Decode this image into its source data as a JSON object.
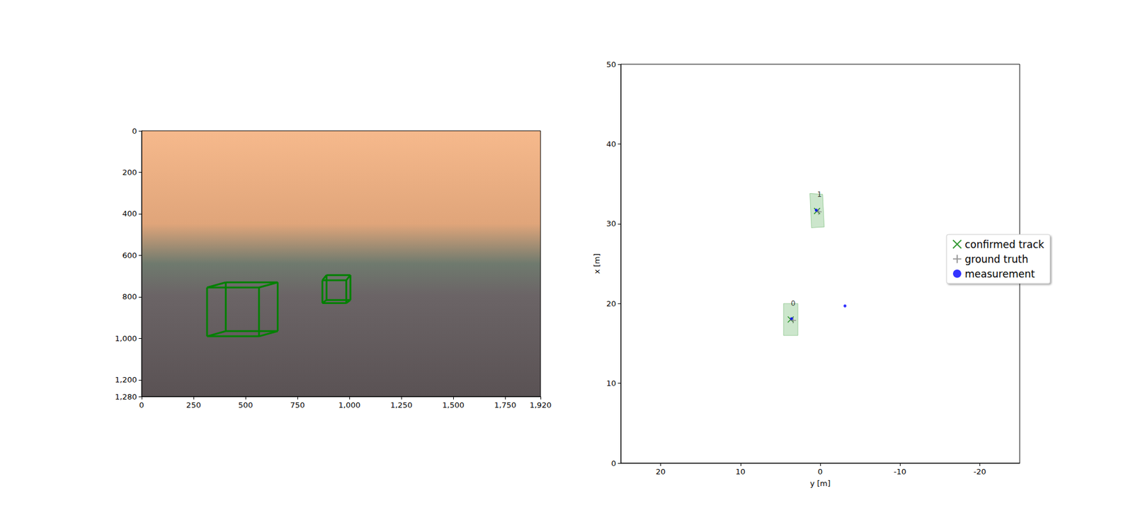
{
  "chart_data": [
    {
      "type": "image",
      "xlim": [
        0,
        1920
      ],
      "ylim": [
        1280,
        0
      ],
      "xticks": [
        0,
        250,
        500,
        750,
        1000,
        1250,
        1500,
        1750
      ],
      "yticks": [
        0,
        200,
        400,
        600,
        800,
        1000,
        1200
      ],
      "boxes": [
        {
          "color": "green",
          "corners": [
            [
              315,
              755
            ],
            [
              565,
              755
            ],
            [
              565,
              990
            ],
            [
              315,
              990
            ],
            [
              405,
              730
            ],
            [
              655,
              730
            ],
            [
              655,
              965
            ],
            [
              405,
              965
            ]
          ]
        },
        {
          "color": "green",
          "corners": [
            [
              870,
              720
            ],
            [
              985,
              720
            ],
            [
              985,
              830
            ],
            [
              870,
              830
            ],
            [
              890,
              695
            ],
            [
              1005,
              695
            ],
            [
              1005,
              815
            ],
            [
              890,
              815
            ]
          ]
        }
      ]
    },
    {
      "type": "scatter",
      "xlabel": "y [m]",
      "ylabel": "x [m]",
      "xlim": [
        25,
        -25
      ],
      "ylim": [
        0,
        50
      ],
      "xticks": [
        20,
        10,
        0,
        -10,
        -20
      ],
      "yticks": [
        0,
        10,
        20,
        30,
        40,
        50
      ],
      "legend": "right",
      "series": [
        {
          "name": "confirmed track",
          "color": "green",
          "marker": "x",
          "x": [
            3.7,
            0.4
          ],
          "y": [
            18.0,
            31.6
          ],
          "labels": [
            "0",
            "1"
          ],
          "boxes": [
            [
              [
                4.6,
                20.0
              ],
              [
                2.8,
                20.0
              ],
              [
                2.8,
                16.0
              ],
              [
                4.6,
                16.0
              ]
            ],
            [
              [
                1.3,
                33.8
              ],
              [
                -0.3,
                33.7
              ],
              [
                -0.5,
                29.6
              ],
              [
                1.1,
                29.5
              ]
            ]
          ]
        },
        {
          "name": "ground truth",
          "color": "gray",
          "marker": "+",
          "x": [
            3.4,
            0.2
          ],
          "y": [
            17.9,
            31.5
          ]
        },
        {
          "name": "measurement",
          "color": "blue",
          "marker": "o",
          "x": [
            3.6,
            0.5,
            -3.1
          ],
          "y": [
            18.1,
            31.7,
            19.7
          ]
        }
      ]
    }
  ]
}
